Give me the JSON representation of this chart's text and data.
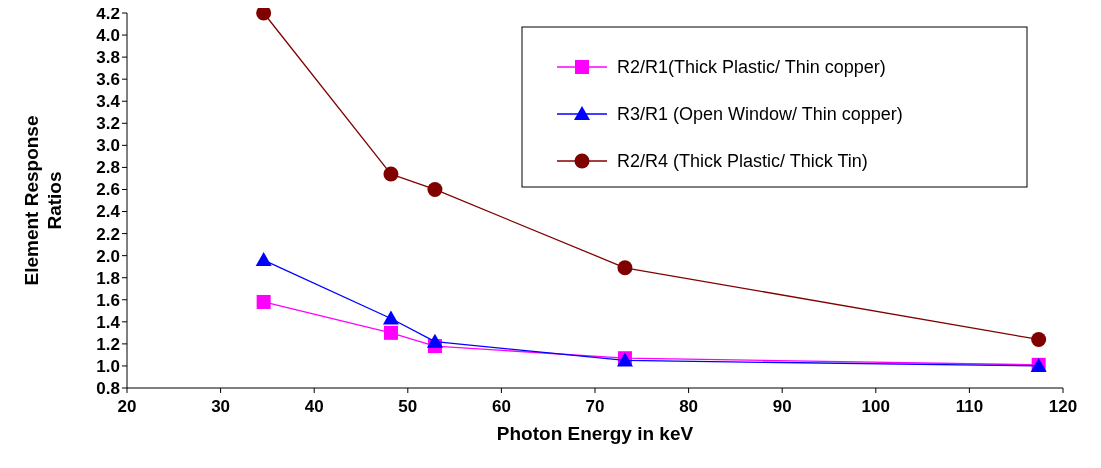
{
  "chart_data": {
    "type": "line",
    "xlabel": "Photon Energy in keV",
    "ylabel": "Element Response Ratios",
    "xlim": [
      20,
      120
    ],
    "xticks": [
      20,
      30,
      40,
      50,
      60,
      70,
      80,
      90,
      100,
      110,
      120
    ],
    "ylim": [
      0.8,
      4.2
    ],
    "yticks": [
      {
        "value": 0.8,
        "label": "0.8"
      },
      {
        "value": 1.0,
        "label": "1.0"
      },
      {
        "value": 1.2,
        "label": "1.2"
      },
      {
        "value": 1.4,
        "label": "1.4"
      },
      {
        "value": 1.6,
        "label": "1.6"
      },
      {
        "value": 1.8,
        "label": "1.8"
      },
      {
        "value": 2.0,
        "label": "2.0"
      },
      {
        "value": 2.2,
        "label": "2.2"
      },
      {
        "value": 2.4,
        "label": "2.4"
      },
      {
        "value": 2.6,
        "label": "2.6"
      },
      {
        "value": 2.8,
        "label": "2.8"
      },
      {
        "value": 3.0,
        "label": "3.0"
      },
      {
        "value": 3.2,
        "label": "3.2"
      },
      {
        "value": 3.4,
        "label": "3.4"
      },
      {
        "value": 3.6,
        "label": "3.6"
      },
      {
        "value": 3.8,
        "label": "3.8"
      },
      {
        "value": 4.0,
        "label": "4.0"
      },
      {
        "value": 4.2,
        "label": "4.2"
      }
    ],
    "x": [
      34.6,
      48.2,
      52.9,
      73.2,
      117.4
    ],
    "legend": "top right",
    "grid": false,
    "line_style": "solid",
    "series": [
      {
        "name": "R2/R1(Thick Plastic/ Thin copper)",
        "color": "#ff00ff",
        "marker": "square",
        "values": [
          1.58,
          1.3,
          1.18,
          1.07,
          1.01
        ]
      },
      {
        "name": "R3/R1 (Open Window/ Thin copper)",
        "color": "#0000ff",
        "marker": "triangle",
        "values": [
          1.96,
          1.43,
          1.22,
          1.05,
          1.0
        ]
      },
      {
        "name": "R2/R4 (Thick Plastic/ Thick Tin)",
        "color": "#800000",
        "marker": "circle",
        "values": [
          4.2,
          2.74,
          2.6,
          1.89,
          1.24
        ]
      }
    ]
  }
}
